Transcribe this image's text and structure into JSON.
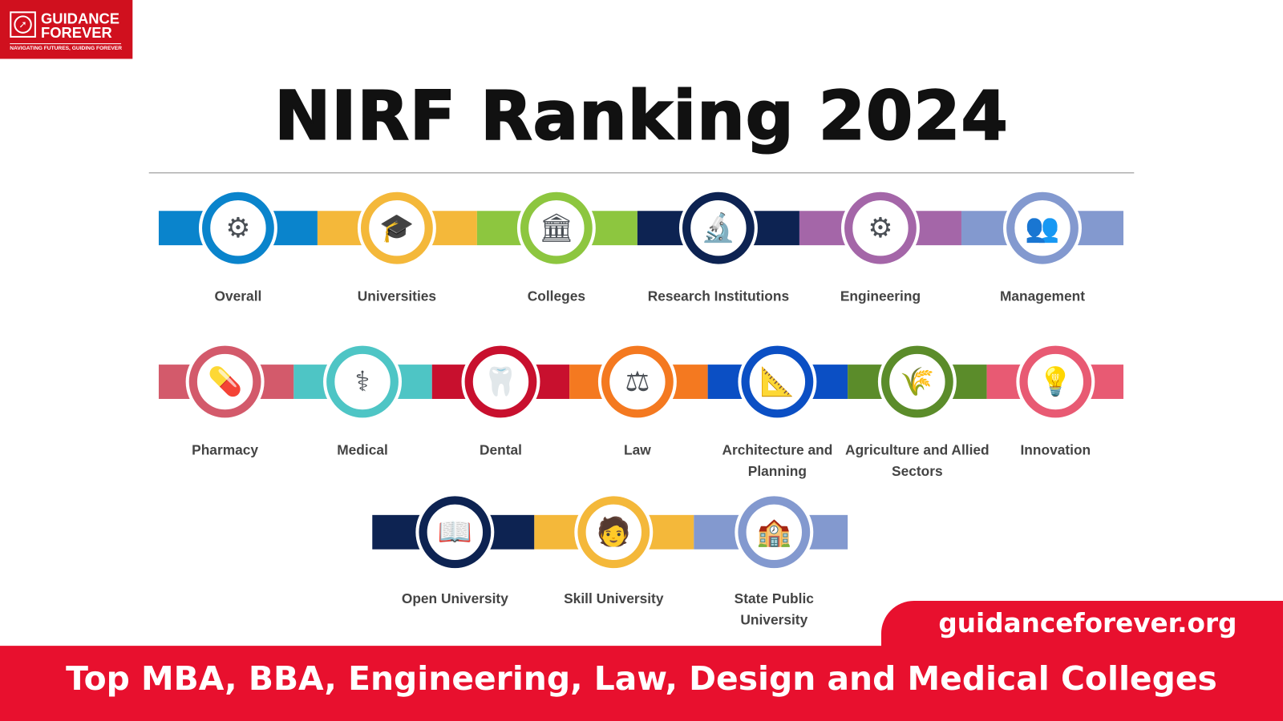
{
  "logo": {
    "line1": "GUIDANCE",
    "line2": "FOREVER",
    "tagline": "NAVIGATING FUTURES, GUIDING FOREVER",
    "icon": "compass-icon",
    "color": "#d0101e"
  },
  "title": "NIRF Ranking 2024",
  "rows": [
    {
      "items": [
        {
          "label": "Overall",
          "color": "#0a84cc",
          "icon": "mixed-categories-icon",
          "glyph": "⚙"
        },
        {
          "label": "Universities",
          "color": "#f4b83a",
          "icon": "graduation-cap-scroll-icon",
          "glyph": "🎓"
        },
        {
          "label": "Colleges",
          "color": "#8dc63f",
          "icon": "building-icon",
          "glyph": "🏛"
        },
        {
          "label": "Research Institutions",
          "color": "#0d2352",
          "icon": "research-lab-icon",
          "glyph": "🔬"
        },
        {
          "label": "Engineering",
          "color": "#a466a8",
          "icon": "gears-icon",
          "glyph": "⚙"
        },
        {
          "label": "Management",
          "color": "#8399cf",
          "icon": "presentation-icon",
          "glyph": "👥"
        }
      ]
    },
    {
      "items": [
        {
          "label": "Pharmacy",
          "color": "#d35a6b",
          "icon": "pill-icon",
          "glyph": "💊"
        },
        {
          "label": "Medical",
          "color": "#4ec5c5",
          "icon": "caduceus-icon",
          "glyph": "⚕"
        },
        {
          "label": "Dental",
          "color": "#c8102e",
          "icon": "stethoscope-tooth-icon",
          "glyph": "🦷"
        },
        {
          "label": "Law",
          "color": "#f47920",
          "icon": "gavel-icon",
          "glyph": "⚖"
        },
        {
          "label": "Architecture and Planning",
          "color": "#0b4fc4",
          "icon": "compass-square-icon",
          "glyph": "📐"
        },
        {
          "label": "Agriculture and Allied Sectors",
          "color": "#5b8c2a",
          "icon": "wheat-icon",
          "glyph": "🌾"
        },
        {
          "label": "Innovation",
          "color": "#e85a73",
          "icon": "lightbulb-head-icon",
          "glyph": "💡"
        }
      ]
    },
    {
      "items": [
        {
          "label": "Open University",
          "color": "#0d2352",
          "icon": "open-book-icon",
          "glyph": "📖"
        },
        {
          "label": "Skill University",
          "color": "#f4b83a",
          "icon": "skilled-person-icon",
          "glyph": "🧑"
        },
        {
          "label": "State Public University",
          "color": "#8399cf",
          "icon": "university-building-icon",
          "glyph": "🏫"
        }
      ]
    }
  ],
  "website": "guidanceforever.org",
  "footer": "Top MBA, BBA, Engineering, Law, Design and Medical Colleges",
  "accent": "#e8102e"
}
